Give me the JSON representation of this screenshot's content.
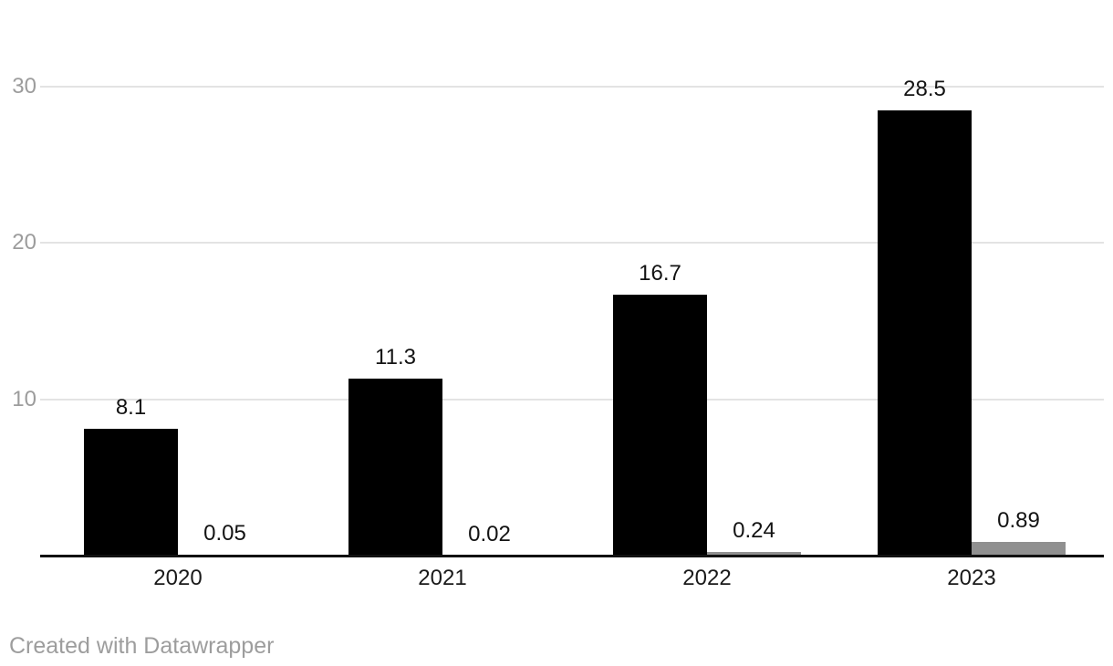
{
  "chart_data": {
    "type": "bar",
    "title": "",
    "categories": [
      "2020",
      "2021",
      "2022",
      "2023"
    ],
    "series": [
      {
        "role": "primary",
        "color": "#000000",
        "values": [
          8.1,
          11.3,
          16.7,
          28.5
        ],
        "labels": [
          "8.1",
          "11.3",
          "16.7",
          "28.5"
        ]
      },
      {
        "role": "secondary",
        "color": "#909090",
        "values": [
          0.05,
          0.02,
          0.24,
          0.89
        ],
        "labels": [
          "0.05",
          "0.02",
          "0.24",
          "0.89"
        ]
      }
    ],
    "y_axis": {
      "ticks": [
        10,
        20,
        30
      ],
      "range": [
        0,
        33
      ],
      "gridlines": true,
      "tick_color": "#9c9c9c",
      "gridline_color": "#e3e3e3"
    },
    "x_axis": {
      "labels": [
        "2020",
        "2021",
        "2022",
        "2023"
      ],
      "label_color": "#1a1a1a"
    },
    "value_label_color": "#131313",
    "legend_position": "none"
  },
  "footer": {
    "credit": "Created with Datawrapper",
    "color": "#9d9d9d"
  }
}
